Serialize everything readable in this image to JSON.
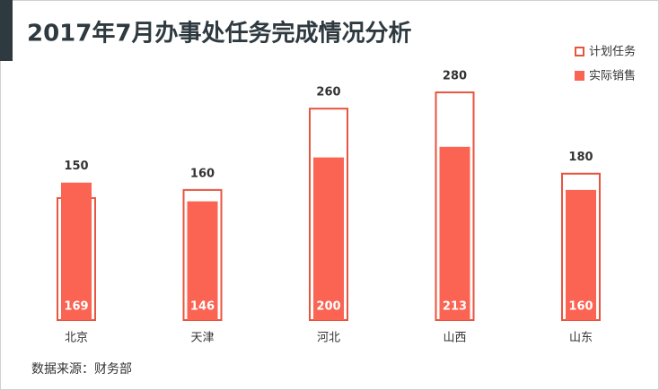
{
  "chart_data": {
    "type": "bar",
    "title": "2017年7月办事处任务完成情况分析",
    "categories": [
      "北京",
      "天津",
      "河北",
      "山西",
      "山东"
    ],
    "series": [
      {
        "name": "计划任务",
        "color": "#e8553f",
        "outline": true,
        "values": [
          150,
          160,
          260,
          280,
          180
        ]
      },
      {
        "name": "实际销售",
        "color": "#fb6352",
        "outline": false,
        "values": [
          169,
          146,
          200,
          213,
          160
        ]
      }
    ],
    "legend": "top-right",
    "source": "数据来源：财务部"
  }
}
